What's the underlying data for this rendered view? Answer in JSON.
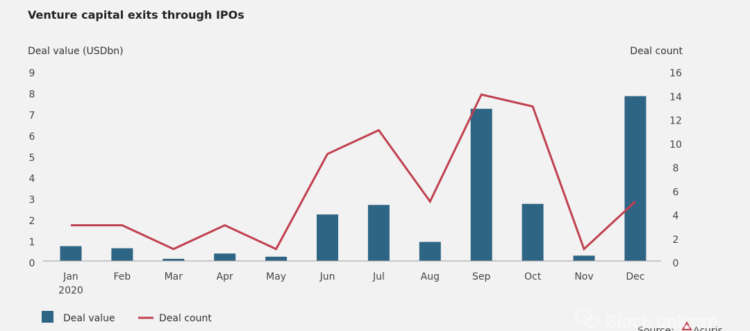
{
  "chart_data": {
    "type": "bar",
    "title": "Venture capital exits through IPOs",
    "ylabel": "Deal value (USDbn)",
    "y2label": "Deal count",
    "categories": [
      "Jan",
      "Feb",
      "Mar",
      "Apr",
      "May",
      "Jun",
      "Jul",
      "Aug",
      "Sep",
      "Oct",
      "Nov",
      "Dec"
    ],
    "year_label": "2020",
    "ylim": [
      0,
      9
    ],
    "y2lim": [
      0,
      16
    ],
    "yticks": [
      0,
      1,
      2,
      3,
      4,
      5,
      6,
      7,
      8,
      9
    ],
    "y2ticks": [
      0,
      2,
      4,
      6,
      8,
      10,
      12,
      14,
      16
    ],
    "series": [
      {
        "name": "Deal value",
        "type": "bar",
        "axis": "left",
        "color": "#2e6584",
        "values": [
          0.7,
          0.6,
          0.1,
          0.35,
          0.2,
          2.2,
          2.65,
          0.9,
          7.2,
          2.7,
          0.25,
          7.8
        ]
      },
      {
        "name": "Deal count",
        "type": "line",
        "axis": "right",
        "color": "#c0404f",
        "values": [
          3,
          3,
          1,
          3,
          1,
          9,
          11,
          5,
          14,
          13,
          1,
          5
        ]
      }
    ],
    "legend": "bottom-left",
    "grid": false
  },
  "source": {
    "label": "Source:",
    "name": "Acuris"
  },
  "watermark": "Block unicorn"
}
